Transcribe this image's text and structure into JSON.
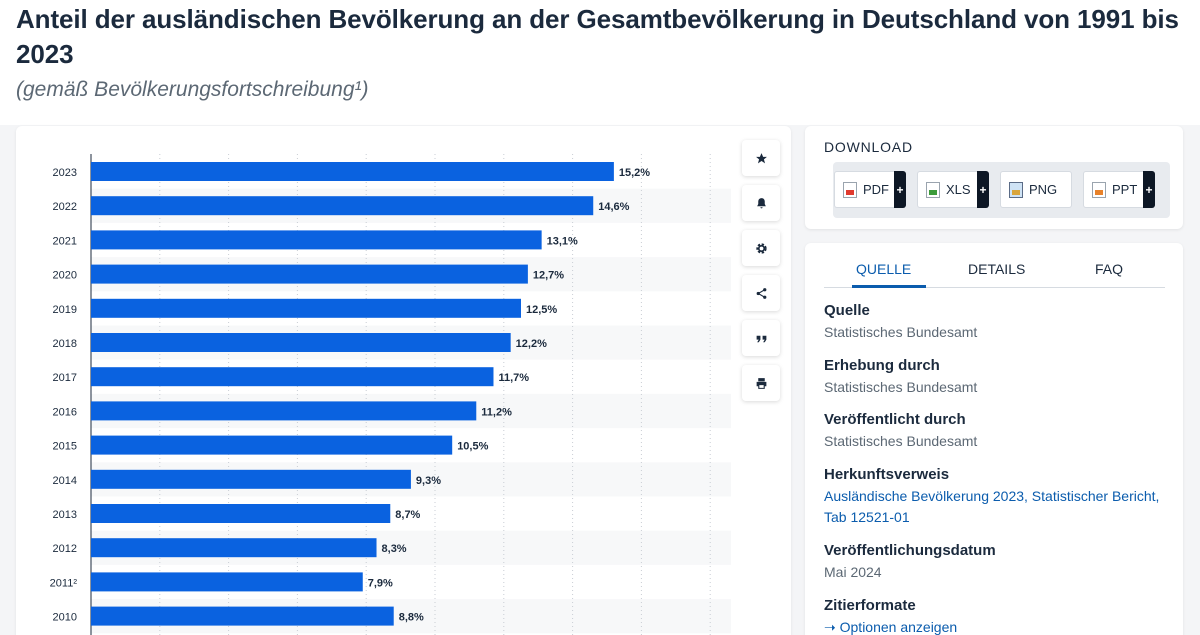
{
  "page": {
    "title": "Anteil der ausländischen Bevölkerung an der Gesamtbevölkerung in Deutschland von 1991 bis 2023",
    "subtitle": "(gemäß Bevölkerungsfortschreibung¹)"
  },
  "toolbar": {
    "icons": [
      "star-icon",
      "bell-icon",
      "gear-icon",
      "share-icon",
      "quote-icon",
      "print-icon"
    ]
  },
  "download": {
    "title": "DOWNLOAD",
    "buttons": [
      {
        "label": "PDF",
        "plus": "+"
      },
      {
        "label": "XLS",
        "plus": "+"
      },
      {
        "label": "PNG"
      },
      {
        "label": "PPT",
        "plus": "+"
      }
    ]
  },
  "info_tabs": {
    "tabs": [
      "QUELLE",
      "DETAILS",
      "FAQ"
    ],
    "active": "QUELLE"
  },
  "info": {
    "quelle_label": "Quelle",
    "quelle_value": "Statistisches Bundesamt",
    "erhebung_label": "Erhebung durch",
    "erhebung_value": "Statistisches Bundesamt",
    "veroeffentlicht_label": "Veröffentlicht durch",
    "veroeffentlicht_value": "Statistisches Bundesamt",
    "herkunft_label": "Herkunftsverweis",
    "herkunft_value_line1": "Ausländische Bevölkerung 2023, Statistischer Bericht,",
    "herkunft_value_line2": "Tab 12521-01",
    "datum_label": "Veröffentlichungsdatum",
    "datum_value": "Mai 2024",
    "zitier_label": "Zitierformate",
    "zitier_link": "Optionen anzeigen"
  },
  "chart_data": {
    "type": "bar",
    "orientation": "horizontal",
    "categories": [
      "2023",
      "2022",
      "2021",
      "2020",
      "2019",
      "2018",
      "2017",
      "2016",
      "2015",
      "2014",
      "2013",
      "2012",
      "2011²",
      "2010"
    ],
    "values": [
      15.2,
      14.6,
      13.1,
      12.7,
      12.5,
      12.2,
      11.7,
      11.2,
      10.5,
      9.3,
      8.7,
      8.3,
      7.9,
      8.8
    ],
    "value_labels": [
      "15,2%",
      "14,6%",
      "13,1%",
      "12,7%",
      "12,5%",
      "12,2%",
      "11,7%",
      "11,2%",
      "10,5%",
      "9,3%",
      "8,7%",
      "8,3%",
      "7,9%",
      "8,8%"
    ],
    "xlim": [
      0,
      18
    ],
    "grid": true,
    "bar_color": "#0a62e0"
  }
}
